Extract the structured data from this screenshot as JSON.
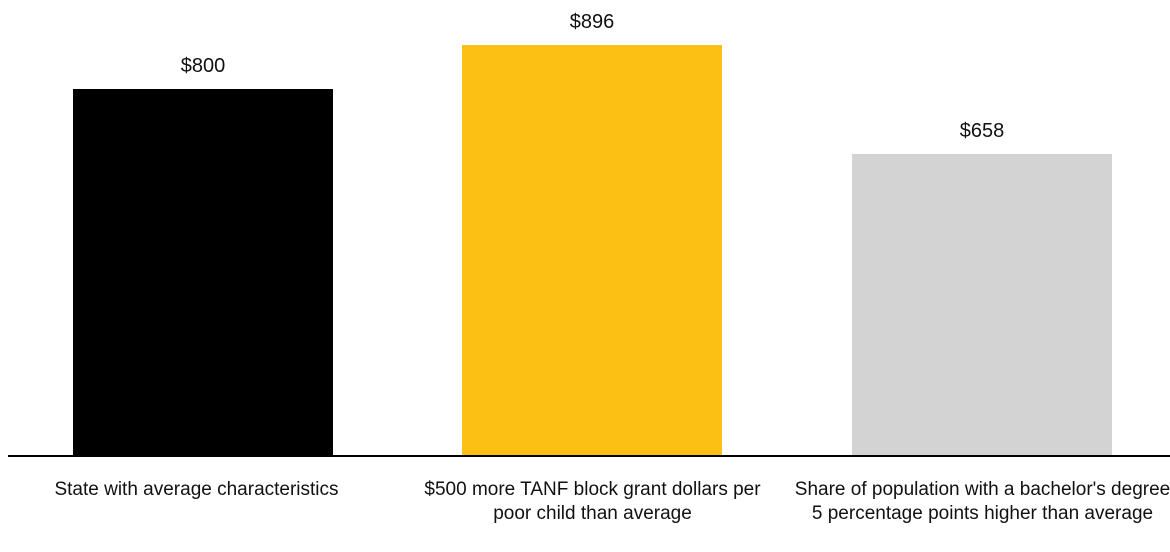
{
  "chart_data": {
    "type": "bar",
    "categories": [
      "State with average characteristics",
      "$500 more TANF block grant dollars per poor child than average",
      "Share of population with a bachelor's degree 5 percentage points higher than average"
    ],
    "values": [
      800,
      896,
      658
    ],
    "value_labels": [
      "$800",
      "$896",
      "$658"
    ],
    "colors": [
      "#000000",
      "#FCC014",
      "#D3D3D3"
    ],
    "title": "",
    "xlabel": "",
    "ylabel": "",
    "ylim": [
      0,
      1000
    ],
    "grid": false,
    "legend": "none"
  }
}
